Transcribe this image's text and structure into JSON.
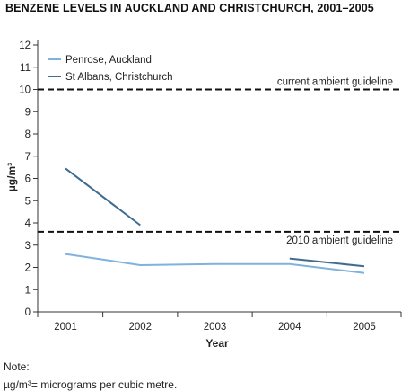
{
  "chart_data": {
    "type": "line",
    "title": "BENZENE LEVELS IN AUCKLAND AND CHRISTCHURCH, 2001–2005",
    "xlabel": "Year",
    "ylabel": "µg/m³",
    "categories": [
      "2001",
      "2002",
      "2003",
      "2004",
      "2005"
    ],
    "ylim": [
      0,
      12
    ],
    "yticks": [
      "0",
      "1",
      "2",
      "3",
      "4",
      "5",
      "6",
      "7",
      "8",
      "9",
      "10",
      "11",
      "12"
    ],
    "legend_position": "top-left",
    "grid": false,
    "series": [
      {
        "name": "Penrose, Auckland",
        "color": "#7fb2dc",
        "points": [
          [
            2001,
            2.6
          ],
          [
            2002,
            2.1
          ],
          [
            2003,
            2.15
          ],
          [
            2004,
            2.15
          ],
          [
            2005,
            1.75
          ]
        ]
      },
      {
        "name": "St Albans, Christchurch",
        "color": "#3f6b8f",
        "segments": [
          [
            [
              2001,
              6.45
            ],
            [
              2002,
              3.9
            ]
          ],
          [
            [
              2004,
              2.4
            ],
            [
              2005,
              2.05
            ]
          ]
        ]
      }
    ],
    "reference_lines": [
      {
        "value": 10,
        "label": "current ambient guideline"
      },
      {
        "value": 3.6,
        "label": "2010 ambient guideline"
      }
    ]
  },
  "notes": {
    "label": "Note:",
    "text": "µg/m³= micrograms per cubic metre."
  }
}
